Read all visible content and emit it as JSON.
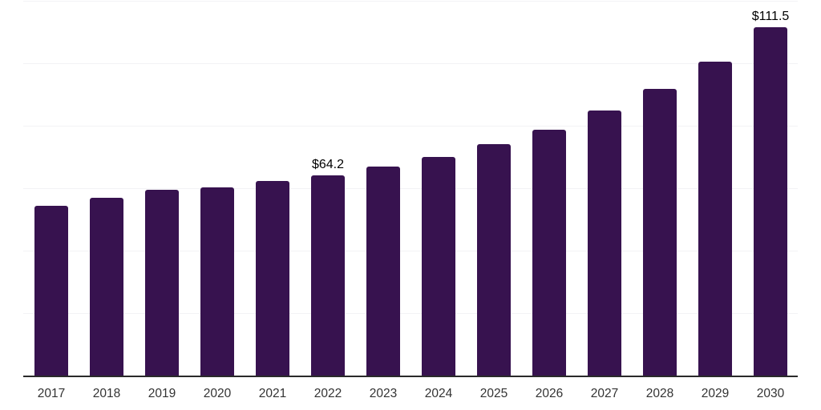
{
  "chart_data": {
    "type": "bar",
    "title": "",
    "xlabel": "",
    "ylabel": "",
    "categories": [
      "2017",
      "2018",
      "2019",
      "2020",
      "2021",
      "2022",
      "2023",
      "2024",
      "2025",
      "2026",
      "2027",
      "2028",
      "2029",
      "2030"
    ],
    "values": [
      54.4,
      56.8,
      59.4,
      60.2,
      62.2,
      64.2,
      67.0,
      70.0,
      74.1,
      78.8,
      85.0,
      91.9,
      100.6,
      111.5
    ],
    "point_labels": {
      "2022": "$64.2",
      "2030": "$111.5"
    },
    "ylim": [
      0,
      120
    ],
    "gridline_step": 20,
    "grid": "horizontal",
    "legend": "none",
    "y_tick_labels_visible": false,
    "colors": {
      "background": "#ffffff",
      "bar": "#37124F",
      "axis_line": "#2a2a2a",
      "gridline": "#f2f2f5",
      "value_label": "#000000",
      "tick_label": "#333333"
    }
  }
}
